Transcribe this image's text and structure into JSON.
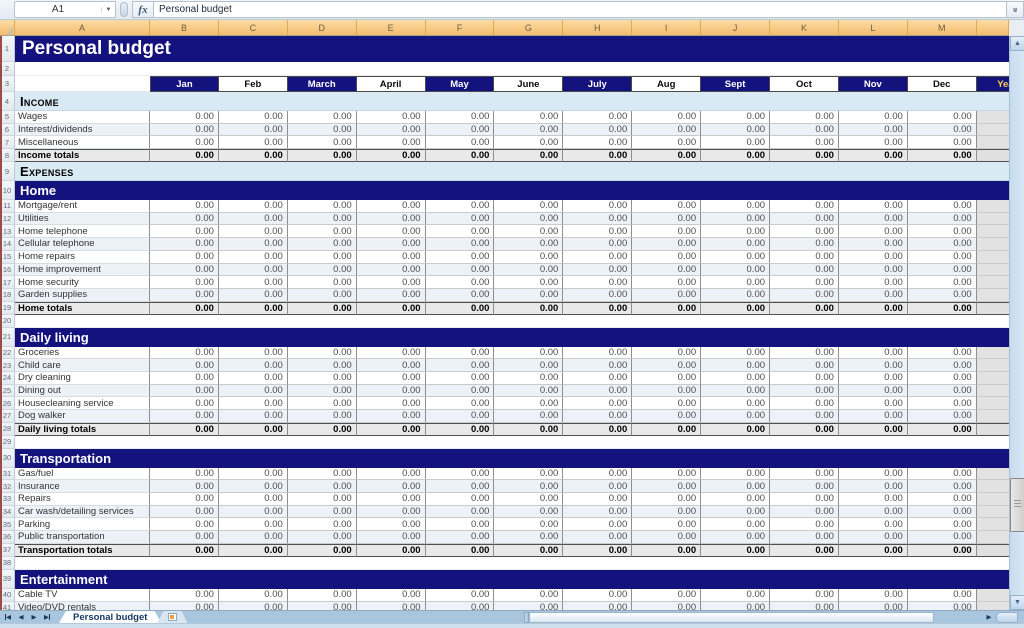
{
  "formula_bar": {
    "name_box_value": "A1",
    "function_icon_label": "fx",
    "formula_value": "Personal budget",
    "expand_chevron": "«"
  },
  "column_headers": [
    "A",
    "B",
    "C",
    "D",
    "E",
    "F",
    "G",
    "H",
    "I",
    "J",
    "K",
    "L",
    "M"
  ],
  "months": [
    "Jan",
    "Feb",
    "March",
    "April",
    "May",
    "June",
    "July",
    "Aug",
    "Sept",
    "Oct",
    "Nov",
    "Dec"
  ],
  "year_column_label": "Yearly",
  "colors": {
    "navy_header": "#14137E",
    "column_header_orange": "#F5BC6C",
    "section_band_light_blue": "#D9EAF5",
    "totals_gray": "#E9E9E9",
    "row_shade": "#EDF2F8",
    "year_text_yellow": "#FFD34D",
    "tabbar_blue": "#A9C6DE"
  },
  "rows": [
    {
      "n": 1,
      "type": "title",
      "label": "Personal budget"
    },
    {
      "n": 2,
      "type": "blank"
    },
    {
      "n": 3,
      "type": "months"
    },
    {
      "n": 4,
      "type": "band_light",
      "label": "Income"
    },
    {
      "n": 5,
      "type": "data",
      "label": "Wages",
      "values": [
        "0.00",
        "0.00",
        "0.00",
        "0.00",
        "0.00",
        "0.00",
        "0.00",
        "0.00",
        "0.00",
        "0.00",
        "0.00",
        "0.00"
      ]
    },
    {
      "n": 6,
      "type": "data",
      "shade": true,
      "label": "Interest/dividends",
      "values": [
        "0.00",
        "0.00",
        "0.00",
        "0.00",
        "0.00",
        "0.00",
        "0.00",
        "0.00",
        "0.00",
        "0.00",
        "0.00",
        "0.00"
      ]
    },
    {
      "n": 7,
      "type": "data",
      "label": "Miscellaneous",
      "values": [
        "0.00",
        "0.00",
        "0.00",
        "0.00",
        "0.00",
        "0.00",
        "0.00",
        "0.00",
        "0.00",
        "0.00",
        "0.00",
        "0.00"
      ]
    },
    {
      "n": 8,
      "type": "total",
      "label": "Income totals",
      "values": [
        "0.00",
        "0.00",
        "0.00",
        "0.00",
        "0.00",
        "0.00",
        "0.00",
        "0.00",
        "0.00",
        "0.00",
        "0.00",
        "0.00"
      ]
    },
    {
      "n": 9,
      "type": "band_light",
      "label": "Expenses"
    },
    {
      "n": 10,
      "type": "band_navy",
      "label": "Home"
    },
    {
      "n": 11,
      "type": "data",
      "label": "Mortgage/rent",
      "values": [
        "0.00",
        "0.00",
        "0.00",
        "0.00",
        "0.00",
        "0.00",
        "0.00",
        "0.00",
        "0.00",
        "0.00",
        "0.00",
        "0.00"
      ]
    },
    {
      "n": 12,
      "type": "data",
      "shade": true,
      "label": "Utilities",
      "values": [
        "0.00",
        "0.00",
        "0.00",
        "0.00",
        "0.00",
        "0.00",
        "0.00",
        "0.00",
        "0.00",
        "0.00",
        "0.00",
        "0.00"
      ]
    },
    {
      "n": 13,
      "type": "data",
      "label": "Home telephone",
      "values": [
        "0.00",
        "0.00",
        "0.00",
        "0.00",
        "0.00",
        "0.00",
        "0.00",
        "0.00",
        "0.00",
        "0.00",
        "0.00",
        "0.00"
      ]
    },
    {
      "n": 14,
      "type": "data",
      "shade": true,
      "label": "Cellular telephone",
      "values": [
        "0.00",
        "0.00",
        "0.00",
        "0.00",
        "0.00",
        "0.00",
        "0.00",
        "0.00",
        "0.00",
        "0.00",
        "0.00",
        "0.00"
      ]
    },
    {
      "n": 15,
      "type": "data",
      "label": "Home repairs",
      "values": [
        "0.00",
        "0.00",
        "0.00",
        "0.00",
        "0.00",
        "0.00",
        "0.00",
        "0.00",
        "0.00",
        "0.00",
        "0.00",
        "0.00"
      ]
    },
    {
      "n": 16,
      "type": "data",
      "shade": true,
      "label": "Home improvement",
      "values": [
        "0.00",
        "0.00",
        "0.00",
        "0.00",
        "0.00",
        "0.00",
        "0.00",
        "0.00",
        "0.00",
        "0.00",
        "0.00",
        "0.00"
      ]
    },
    {
      "n": 17,
      "type": "data",
      "label": "Home security",
      "values": [
        "0.00",
        "0.00",
        "0.00",
        "0.00",
        "0.00",
        "0.00",
        "0.00",
        "0.00",
        "0.00",
        "0.00",
        "0.00",
        "0.00"
      ]
    },
    {
      "n": 18,
      "type": "data",
      "shade": true,
      "label": "Garden supplies",
      "values": [
        "0.00",
        "0.00",
        "0.00",
        "0.00",
        "0.00",
        "0.00",
        "0.00",
        "0.00",
        "0.00",
        "0.00",
        "0.00",
        "0.00"
      ]
    },
    {
      "n": 19,
      "type": "total",
      "label": "Home totals",
      "values": [
        "0.00",
        "0.00",
        "0.00",
        "0.00",
        "0.00",
        "0.00",
        "0.00",
        "0.00",
        "0.00",
        "0.00",
        "0.00",
        "0.00"
      ]
    },
    {
      "n": 20,
      "type": "blank"
    },
    {
      "n": 21,
      "type": "band_navy",
      "label": "Daily living"
    },
    {
      "n": 22,
      "type": "data",
      "label": "Groceries",
      "values": [
        "0.00",
        "0.00",
        "0.00",
        "0.00",
        "0.00",
        "0.00",
        "0.00",
        "0.00",
        "0.00",
        "0.00",
        "0.00",
        "0.00"
      ]
    },
    {
      "n": 23,
      "type": "data",
      "shade": true,
      "label": "Child care",
      "values": [
        "0.00",
        "0.00",
        "0.00",
        "0.00",
        "0.00",
        "0.00",
        "0.00",
        "0.00",
        "0.00",
        "0.00",
        "0.00",
        "0.00"
      ]
    },
    {
      "n": 24,
      "type": "data",
      "label": "Dry cleaning",
      "values": [
        "0.00",
        "0.00",
        "0.00",
        "0.00",
        "0.00",
        "0.00",
        "0.00",
        "0.00",
        "0.00",
        "0.00",
        "0.00",
        "0.00"
      ]
    },
    {
      "n": 25,
      "type": "data",
      "shade": true,
      "label": "Dining out",
      "values": [
        "0.00",
        "0.00",
        "0.00",
        "0.00",
        "0.00",
        "0.00",
        "0.00",
        "0.00",
        "0.00",
        "0.00",
        "0.00",
        "0.00"
      ]
    },
    {
      "n": 26,
      "type": "data",
      "label": "Housecleaning service",
      "values": [
        "0.00",
        "0.00",
        "0.00",
        "0.00",
        "0.00",
        "0.00",
        "0.00",
        "0.00",
        "0.00",
        "0.00",
        "0.00",
        "0.00"
      ]
    },
    {
      "n": 27,
      "type": "data",
      "shade": true,
      "label": "Dog walker",
      "values": [
        "0.00",
        "0.00",
        "0.00",
        "0.00",
        "0.00",
        "0.00",
        "0.00",
        "0.00",
        "0.00",
        "0.00",
        "0.00",
        "0.00"
      ]
    },
    {
      "n": 28,
      "type": "total",
      "label": "Daily living totals",
      "values": [
        "0.00",
        "0.00",
        "0.00",
        "0.00",
        "0.00",
        "0.00",
        "0.00",
        "0.00",
        "0.00",
        "0.00",
        "0.00",
        "0.00"
      ]
    },
    {
      "n": 29,
      "type": "blank"
    },
    {
      "n": 30,
      "type": "band_navy",
      "label": "Transportation"
    },
    {
      "n": 31,
      "type": "data",
      "label": "Gas/fuel",
      "values": [
        "0.00",
        "0.00",
        "0.00",
        "0.00",
        "0.00",
        "0.00",
        "0.00",
        "0.00",
        "0.00",
        "0.00",
        "0.00",
        "0.00"
      ]
    },
    {
      "n": 32,
      "type": "data",
      "shade": true,
      "label": "Insurance",
      "values": [
        "0.00",
        "0.00",
        "0.00",
        "0.00",
        "0.00",
        "0.00",
        "0.00",
        "0.00",
        "0.00",
        "0.00",
        "0.00",
        "0.00"
      ]
    },
    {
      "n": 33,
      "type": "data",
      "label": "Repairs",
      "values": [
        "0.00",
        "0.00",
        "0.00",
        "0.00",
        "0.00",
        "0.00",
        "0.00",
        "0.00",
        "0.00",
        "0.00",
        "0.00",
        "0.00"
      ]
    },
    {
      "n": 34,
      "type": "data",
      "shade": true,
      "label": "Car wash/detailing services",
      "values": [
        "0.00",
        "0.00",
        "0.00",
        "0.00",
        "0.00",
        "0.00",
        "0.00",
        "0.00",
        "0.00",
        "0.00",
        "0.00",
        "0.00"
      ]
    },
    {
      "n": 35,
      "type": "data",
      "label": "Parking",
      "values": [
        "0.00",
        "0.00",
        "0.00",
        "0.00",
        "0.00",
        "0.00",
        "0.00",
        "0.00",
        "0.00",
        "0.00",
        "0.00",
        "0.00"
      ]
    },
    {
      "n": 36,
      "type": "data",
      "shade": true,
      "label": "Public transportation",
      "values": [
        "0.00",
        "0.00",
        "0.00",
        "0.00",
        "0.00",
        "0.00",
        "0.00",
        "0.00",
        "0.00",
        "0.00",
        "0.00",
        "0.00"
      ]
    },
    {
      "n": 37,
      "type": "total",
      "label": "Transportation totals",
      "values": [
        "0.00",
        "0.00",
        "0.00",
        "0.00",
        "0.00",
        "0.00",
        "0.00",
        "0.00",
        "0.00",
        "0.00",
        "0.00",
        "0.00"
      ]
    },
    {
      "n": 38,
      "type": "blank"
    },
    {
      "n": 39,
      "type": "band_navy",
      "label": "Entertainment"
    },
    {
      "n": 40,
      "type": "data",
      "label": "Cable TV",
      "values": [
        "0.00",
        "0.00",
        "0.00",
        "0.00",
        "0.00",
        "0.00",
        "0.00",
        "0.00",
        "0.00",
        "0.00",
        "0.00",
        "0.00"
      ]
    },
    {
      "n": 41,
      "type": "data",
      "shade": true,
      "label": "Video/DVD rentals",
      "values": [
        "0.00",
        "0.00",
        "0.00",
        "0.00",
        "0.00",
        "0.00",
        "0.00",
        "0.00",
        "0.00",
        "0.00",
        "0.00",
        "0.00"
      ]
    }
  ],
  "tab_bar": {
    "active_tab": "Personal budget"
  }
}
